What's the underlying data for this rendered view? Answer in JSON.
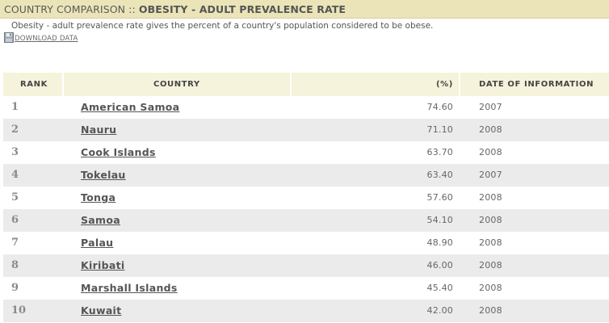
{
  "header": {
    "title_prefix": "COUNTRY COMPARISON",
    "title_separator": "::",
    "title_main": "OBESITY - ADULT PREVALENCE RATE",
    "description": "Obesity - adult prevalence rate gives the percent of a country's population considered to be obese.",
    "download_label": "DOWNLOAD DATA",
    "download_icon": "save-disk-icon"
  },
  "table": {
    "columns": {
      "rank": "RANK",
      "country": "COUNTRY",
      "value": "(%)",
      "date": "DATE OF INFORMATION"
    },
    "rows": [
      {
        "rank": "1",
        "country": "American Samoa",
        "value": "74.60",
        "date": "2007"
      },
      {
        "rank": "2",
        "country": "Nauru",
        "value": "71.10",
        "date": "2008"
      },
      {
        "rank": "3",
        "country": "Cook Islands",
        "value": "63.70",
        "date": "2008"
      },
      {
        "rank": "4",
        "country": "Tokelau",
        "value": "63.40",
        "date": "2007"
      },
      {
        "rank": "5",
        "country": "Tonga",
        "value": "57.60",
        "date": "2008"
      },
      {
        "rank": "6",
        "country": "Samoa",
        "value": "54.10",
        "date": "2008"
      },
      {
        "rank": "7",
        "country": "Palau",
        "value": "48.90",
        "date": "2008"
      },
      {
        "rank": "8",
        "country": "Kiribati",
        "value": "46.00",
        "date": "2008"
      },
      {
        "rank": "9",
        "country": "Marshall Islands",
        "value": "45.40",
        "date": "2008"
      },
      {
        "rank": "10",
        "country": "Kuwait",
        "value": "42.00",
        "date": "2008"
      }
    ]
  },
  "colors": {
    "title_bar": "#ebe4b8",
    "table_header": "#f6f3dc",
    "alt_row": "#ebebeb"
  }
}
